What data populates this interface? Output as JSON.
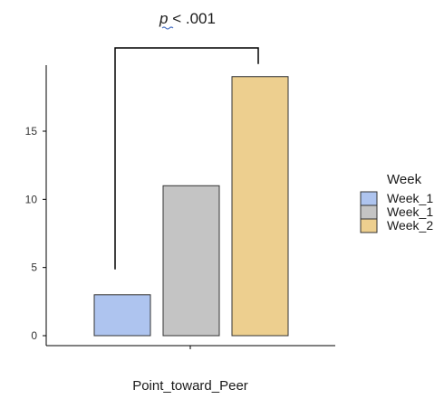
{
  "chart_data": {
    "type": "bar",
    "categories": [
      "Point_toward_Peer"
    ],
    "xlabel": "Point_toward_Peer",
    "ylabel": "",
    "ylim": [
      0,
      19.5
    ],
    "yticks": [
      0,
      5,
      10,
      15
    ],
    "series": [
      {
        "name": "Week_1",
        "values": [
          3
        ],
        "color": "#aec4ef"
      },
      {
        "name": "Week_1",
        "values": [
          11
        ],
        "color": "#c4c4c4"
      },
      {
        "name": "Week_2",
        "values": [
          19
        ],
        "color": "#edcf8f"
      }
    ],
    "legend": {
      "title": "Week",
      "placement": "right"
    },
    "grid": false,
    "annotation": {
      "p_symbol": "p",
      "p_text": " < .001",
      "compares": [
        "Week_1",
        "Week_2"
      ]
    }
  }
}
